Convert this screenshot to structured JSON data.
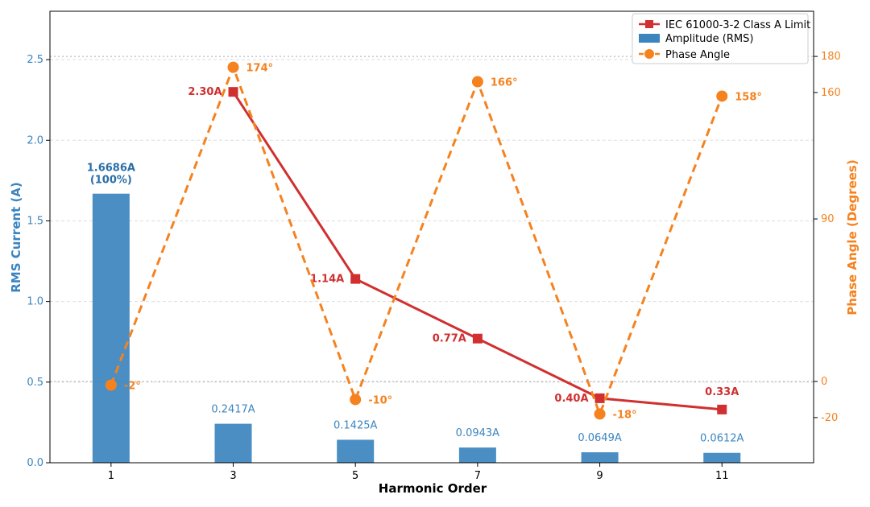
{
  "chart_data": {
    "type": "bar",
    "xlabel": "Harmonic Order",
    "ylabel": "RMS Current (A)",
    "y2label": "Phase Angle (Degrees)",
    "categories": [
      "1",
      "3",
      "5",
      "7",
      "9",
      "11"
    ],
    "x": [
      1,
      3,
      5,
      7,
      9,
      11
    ],
    "xlim": [
      0,
      12.5
    ],
    "ylim": [
      0,
      2.8
    ],
    "y2lim": [
      -45,
      205
    ],
    "yticks": [
      "0.0",
      "0.5",
      "1.0",
      "1.5",
      "2.0",
      "2.5"
    ],
    "y2ticks": [
      "-20",
      "0",
      "90",
      "160",
      "180"
    ],
    "grid": true,
    "legend_position": "top-right",
    "series": [
      {
        "name": "Amplitude (RMS)",
        "type": "bar",
        "axis": "left",
        "color": "#3b84bf",
        "values": [
          1.6686,
          0.2417,
          0.1425,
          0.0943,
          0.0649,
          0.0612
        ],
        "labels": [
          "1.6686A",
          "0.2417A",
          "0.1425A",
          "0.0943A",
          "0.0649A",
          "0.0612A"
        ],
        "first_label_extra": "(100%)"
      },
      {
        "name": "IEC 61000-3-2 Class A Limit",
        "type": "line",
        "axis": "left",
        "color": "#d03030",
        "x": [
          3,
          5,
          7,
          9,
          11
        ],
        "values": [
          2.3,
          1.14,
          0.77,
          0.4,
          0.33
        ],
        "labels": [
          "2.30A",
          "1.14A",
          "0.77A",
          "0.40A",
          "0.33A"
        ]
      },
      {
        "name": "Phase Angle",
        "type": "line",
        "axis": "right",
        "color": "#f5821f",
        "x": [
          1,
          3,
          5,
          7,
          9,
          11
        ],
        "values": [
          -2,
          174,
          -10,
          166,
          -18,
          158
        ],
        "labels": [
          "-2°",
          "174°",
          "-10°",
          "166°",
          "-18°",
          "158°"
        ]
      }
    ]
  }
}
